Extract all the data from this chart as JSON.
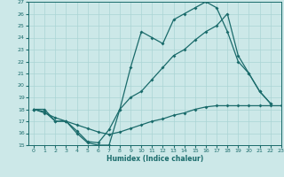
{
  "xlabel": "Humidex (Indice chaleur)",
  "bg_color": "#cce8e8",
  "line_color": "#1a6b6b",
  "grid_color": "#aad4d4",
  "xlim": [
    -0.5,
    23
  ],
  "ylim": [
    15,
    27
  ],
  "xticks": [
    0,
    1,
    2,
    3,
    4,
    5,
    6,
    7,
    8,
    9,
    10,
    11,
    12,
    13,
    14,
    15,
    16,
    17,
    18,
    19,
    20,
    21,
    22,
    23
  ],
  "yticks": [
    15,
    16,
    17,
    18,
    19,
    20,
    21,
    22,
    23,
    24,
    25,
    26,
    27
  ],
  "curve1_x": [
    0,
    1,
    2,
    3,
    4,
    5,
    6,
    7,
    8,
    9,
    10,
    11,
    12,
    13,
    14,
    15,
    16,
    17,
    18,
    19,
    20,
    21,
    22
  ],
  "curve1_y": [
    18,
    17.8,
    17,
    17,
    16,
    15.2,
    15,
    15,
    18,
    21.5,
    24.5,
    24,
    23.5,
    25.5,
    26,
    26.5,
    27,
    26.5,
    24.5,
    22,
    21,
    19.5,
    18.5
  ],
  "curve2_x": [
    0,
    1,
    2,
    3,
    4,
    5,
    6,
    7,
    8,
    9,
    10,
    11,
    12,
    13,
    14,
    15,
    16,
    17,
    18,
    19,
    20,
    21,
    22
  ],
  "curve2_y": [
    18,
    18,
    17,
    17,
    16.2,
    15.3,
    15.2,
    16.3,
    18,
    19,
    19.5,
    20.5,
    21.5,
    22.5,
    23,
    23.8,
    24.5,
    25,
    26,
    22.5,
    21,
    19.5,
    18.5
  ],
  "curve3_x": [
    0,
    1,
    2,
    3,
    4,
    5,
    6,
    7,
    8,
    9,
    10,
    11,
    12,
    13,
    14,
    15,
    16,
    17,
    18,
    19,
    20,
    21,
    22,
    23
  ],
  "curve3_y": [
    18,
    17.7,
    17.3,
    17.0,
    16.7,
    16.4,
    16.1,
    15.9,
    16.1,
    16.4,
    16.7,
    17.0,
    17.2,
    17.5,
    17.7,
    18.0,
    18.2,
    18.3,
    18.3,
    18.3,
    18.3,
    18.3,
    18.3,
    18.3
  ]
}
